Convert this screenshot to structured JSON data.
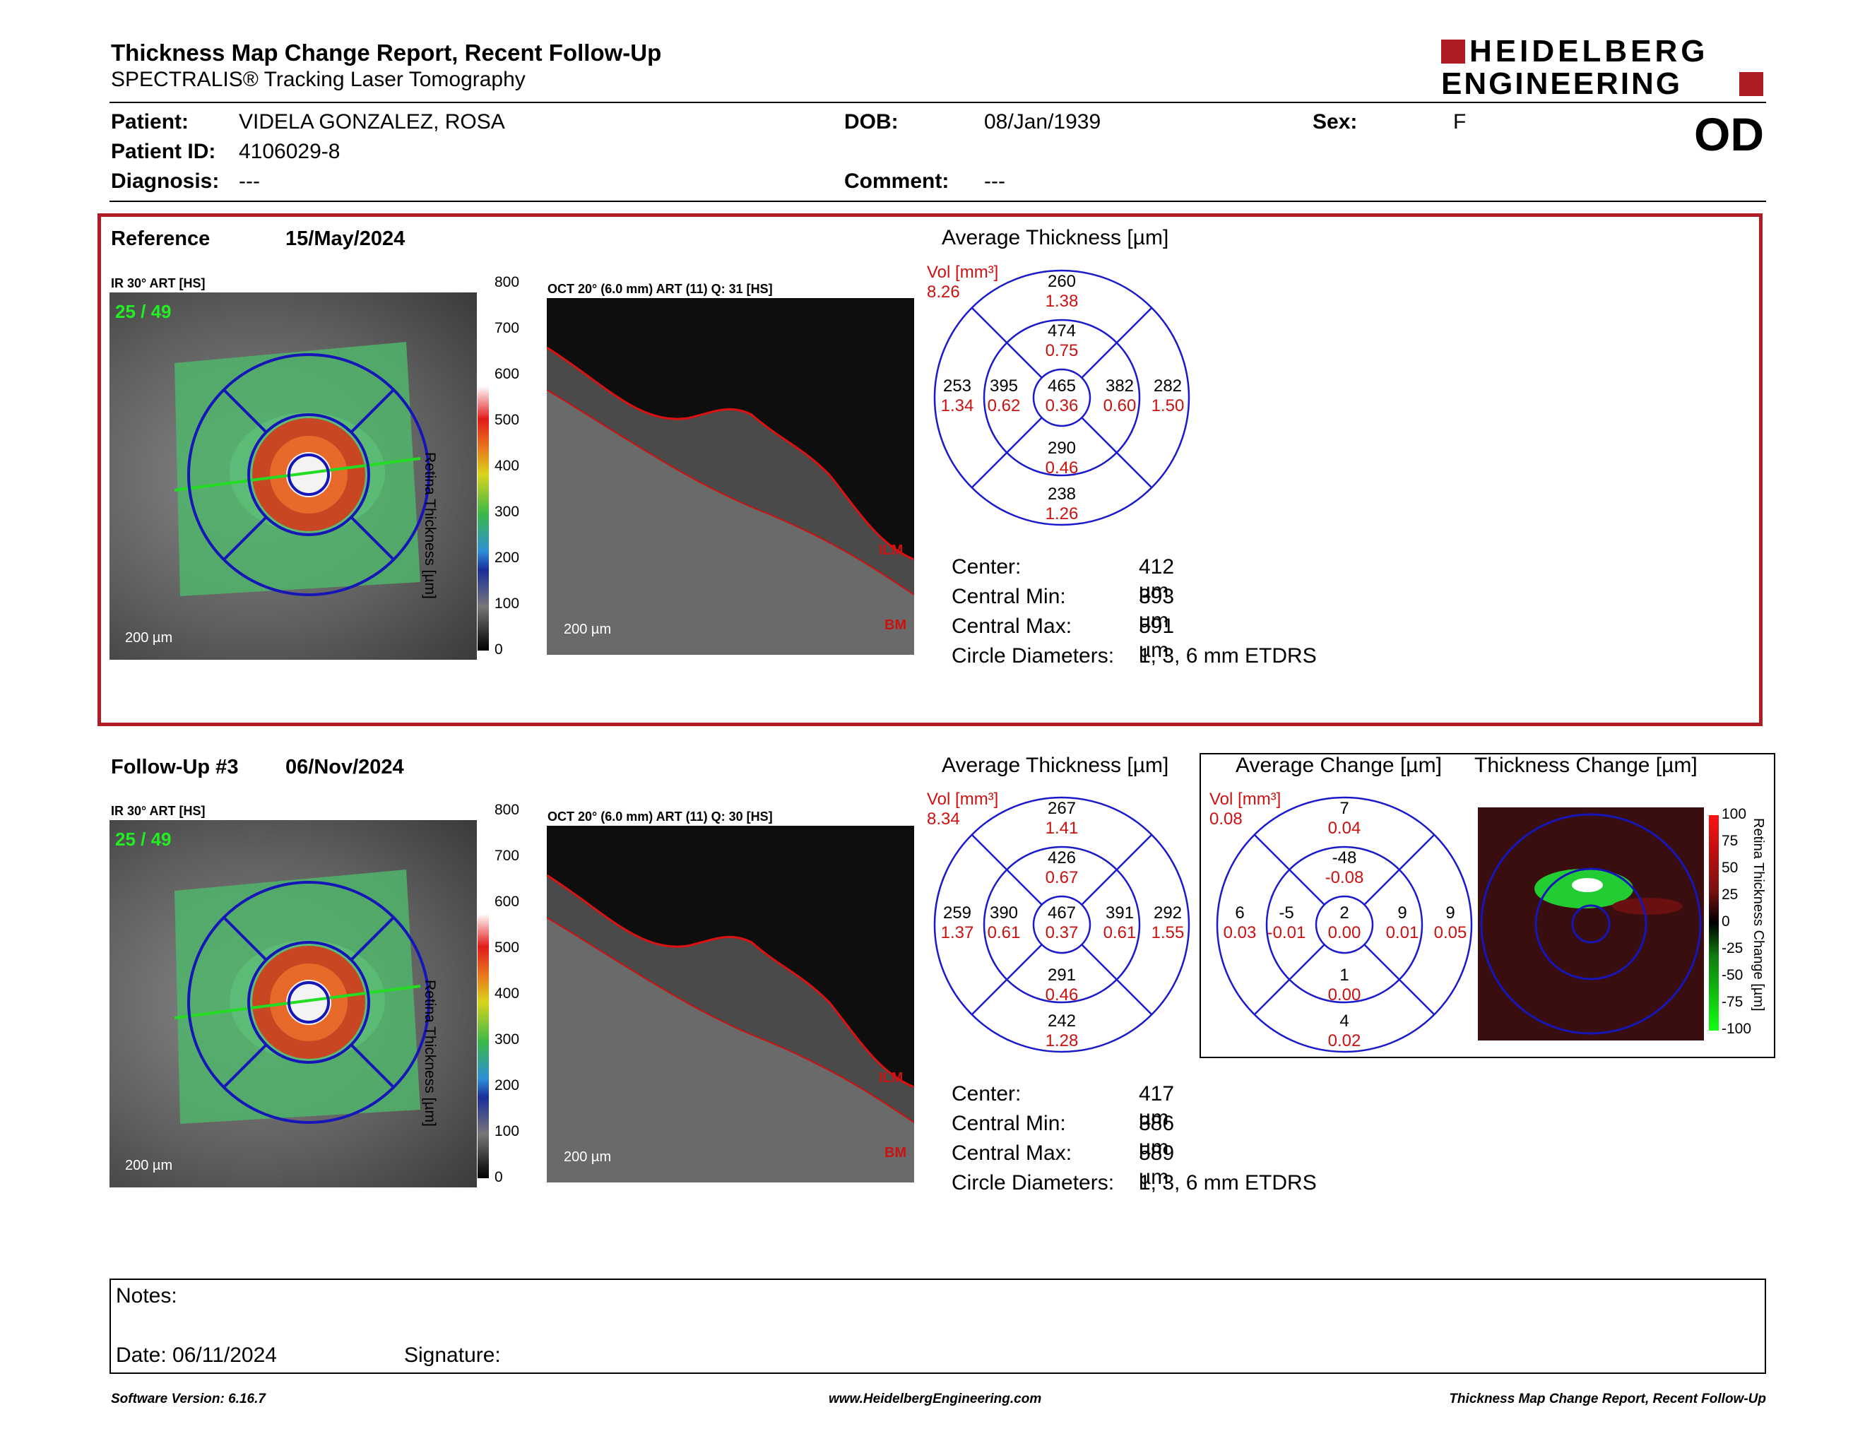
{
  "header": {
    "title": "Thickness Map Change Report, Recent Follow-Up",
    "subtitle": "SPECTRALIS® Tracking Laser Tomography",
    "logo_line1": "HEIDELBERG",
    "logo_line2": "ENGINEERING",
    "eye": "OD"
  },
  "patient": {
    "patient_label": "Patient:",
    "patient_value": "VIDELA GONZALEZ, ROSA",
    "dob_label": "DOB:",
    "dob_value": "08/Jan/1939",
    "sex_label": "Sex:",
    "sex_value": "F",
    "id_label": "Patient ID:",
    "id_value": "4106029-8",
    "diag_label": "Diagnosis:",
    "diag_value": "---",
    "comment_label": "Comment:",
    "comment_value": "---"
  },
  "colors": {
    "accent_red": "#b01c24",
    "etdrs_blue": "#1a1acc",
    "vol_red": "#cc1111"
  },
  "reference": {
    "label": "Reference",
    "date": "15/May/2024",
    "ir_label": "IR 30° ART [HS]",
    "frame": "25 / 49",
    "oct_label": "OCT 20° (6.0 mm) ART (11) Q: 31 [HS]",
    "scale": "200 µm",
    "colorbar_title": "Retina Thickness [µm]",
    "colorbar_ticks": [
      "800",
      "700",
      "600",
      "500",
      "400",
      "300",
      "200",
      "100",
      "0"
    ],
    "ilm": "ILM",
    "bm": "BM",
    "avg_title": "Average Thickness [µm]",
    "vol_label": "Vol [mm³]",
    "vol_value": "8.26",
    "etdrs": {
      "outer_top": [
        "260",
        "1.38"
      ],
      "inner_top": [
        "474",
        "0.75"
      ],
      "outer_left": [
        "253",
        "1.34"
      ],
      "inner_left": [
        "395",
        "0.62"
      ],
      "center": [
        "465",
        "0.36"
      ],
      "inner_right": [
        "382",
        "0.60"
      ],
      "outer_right": [
        "282",
        "1.50"
      ],
      "inner_bottom": [
        "290",
        "0.46"
      ],
      "outer_bottom": [
        "238",
        "1.26"
      ]
    },
    "stats": [
      {
        "label": "Center:",
        "value": "412 µm"
      },
      {
        "label": "Central Min:",
        "value": "393 µm"
      },
      {
        "label": "Central Max:",
        "value": "591 µm"
      },
      {
        "label": "Circle Diameters:",
        "value": "1, 3, 6 mm ETDRS"
      }
    ]
  },
  "followup": {
    "label": "Follow-Up #3",
    "date": "06/Nov/2024",
    "ir_label": "IR 30° ART [HS]",
    "frame": "25 / 49",
    "oct_label": "OCT 20° (6.0 mm) ART (11) Q: 30 [HS]",
    "scale": "200 µm",
    "colorbar_title": "Retina Thickness [µm]",
    "colorbar_ticks": [
      "800",
      "700",
      "600",
      "500",
      "400",
      "300",
      "200",
      "100",
      "0"
    ],
    "ilm": "ILM",
    "bm": "BM",
    "avg_title": "Average Thickness [µm]",
    "vol_label": "Vol [mm³]",
    "vol_value": "8.34",
    "etdrs": {
      "outer_top": [
        "267",
        "1.41"
      ],
      "inner_top": [
        "426",
        "0.67"
      ],
      "outer_left": [
        "259",
        "1.37"
      ],
      "inner_left": [
        "390",
        "0.61"
      ],
      "center": [
        "467",
        "0.37"
      ],
      "inner_right": [
        "391",
        "0.61"
      ],
      "outer_right": [
        "292",
        "1.55"
      ],
      "inner_bottom": [
        "291",
        "0.46"
      ],
      "outer_bottom": [
        "242",
        "1.28"
      ]
    },
    "change_title": "Average Change [µm]",
    "change_vol_label": "Vol [mm³]",
    "change_vol_value": "0.08",
    "change": {
      "outer_top": [
        "7",
        "0.04"
      ],
      "inner_top": [
        "-48",
        "-0.08"
      ],
      "outer_left": [
        "6",
        "0.03"
      ],
      "inner_left": [
        "-5",
        "-0.01"
      ],
      "center": [
        "2",
        "0.00"
      ],
      "inner_right": [
        "9",
        "0.01"
      ],
      "outer_right": [
        "9",
        "0.05"
      ],
      "inner_bottom": [
        "1",
        "0.00"
      ],
      "outer_bottom": [
        "4",
        "0.02"
      ]
    },
    "thick_change_title": "Thickness Change [µm]",
    "change_bar_title": "Retina Thickness Change [µm]",
    "change_ticks": [
      "100",
      "75",
      "50",
      "25",
      "0",
      "-25",
      "-50",
      "-75",
      "-100"
    ],
    "stats": [
      {
        "label": "Center:",
        "value": "417 µm"
      },
      {
        "label": "Central Min:",
        "value": "386 µm"
      },
      {
        "label": "Central Max:",
        "value": "589 µm"
      },
      {
        "label": "Circle Diameters:",
        "value": "1, 3, 6 mm ETDRS"
      }
    ]
  },
  "notes": {
    "notes_label": "Notes:",
    "date_label": "Date: 06/11/2024",
    "signature_label": "Signature:"
  },
  "footer": {
    "software": "Software Version: 6.16.7",
    "website": "www.HeidelbergEngineering.com",
    "report": "Thickness Map Change Report, Recent Follow-Up"
  }
}
